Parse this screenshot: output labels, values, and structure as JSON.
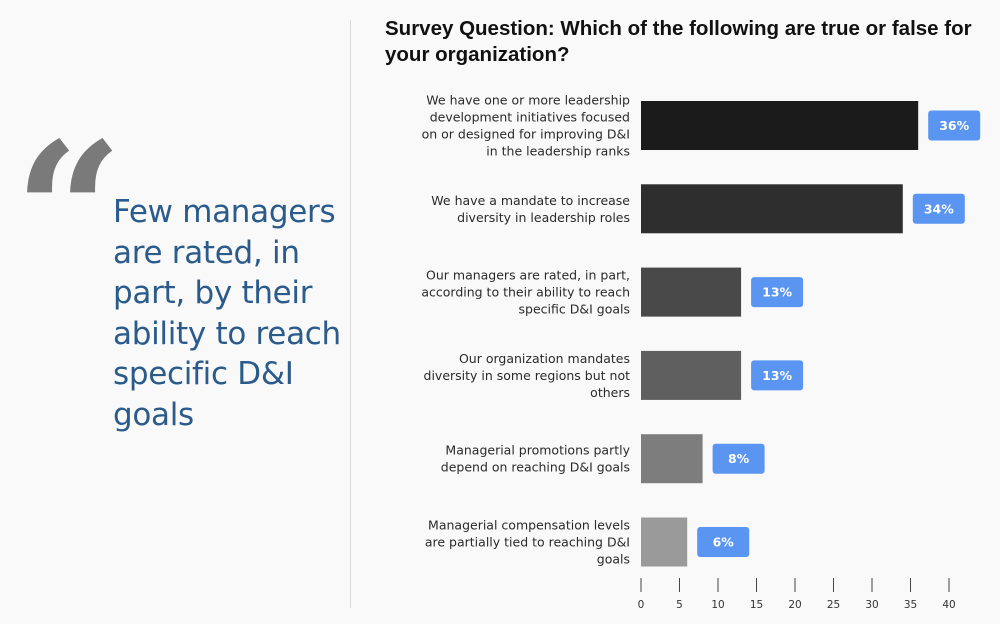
{
  "callout": {
    "quote_mark": "“",
    "text": "Few managers are rated, in part, by their ability to reach specific D&I goals"
  },
  "chart_data": {
    "type": "bar",
    "orientation": "horizontal",
    "title": "Survey Question: Which of the following are true or false for your organization?",
    "categories": [
      [
        "We have one or more leadership",
        "development initiatives focused",
        "on or designed for improving D&I",
        "in the leadership ranks"
      ],
      [
        "We have a mandate to increase",
        "diversity in leadership roles"
      ],
      [
        "Our managers are rated, in part,",
        "according to their ability to reach",
        "specific D&I goals"
      ],
      [
        "Our organization mandates",
        "diversity in some regions but not",
        "others"
      ],
      [
        "Managerial promotions partly",
        "depend on reaching D&I goals"
      ],
      [
        "Managerial compensation levels",
        "are partially tied to reaching D&I",
        "goals"
      ]
    ],
    "values": [
      36,
      34,
      13,
      13,
      8,
      6
    ],
    "value_labels": [
      "36%",
      "34%",
      "13%",
      "13%",
      "8%",
      "6%"
    ],
    "bar_colors": [
      "#1b1b1b",
      "#2e2e2e",
      "#494949",
      "#5f5f5f",
      "#7d7d7d",
      "#9a9a9a"
    ],
    "label_badge_color": "#5a95f2",
    "xlim": [
      0,
      40
    ],
    "xticks": [
      0,
      5,
      10,
      15,
      20,
      25,
      30,
      35,
      40
    ],
    "xtick_labels": [
      "0",
      "5",
      "10",
      "15",
      "20",
      "25",
      "30",
      "35",
      "40"
    ],
    "grid": false
  }
}
